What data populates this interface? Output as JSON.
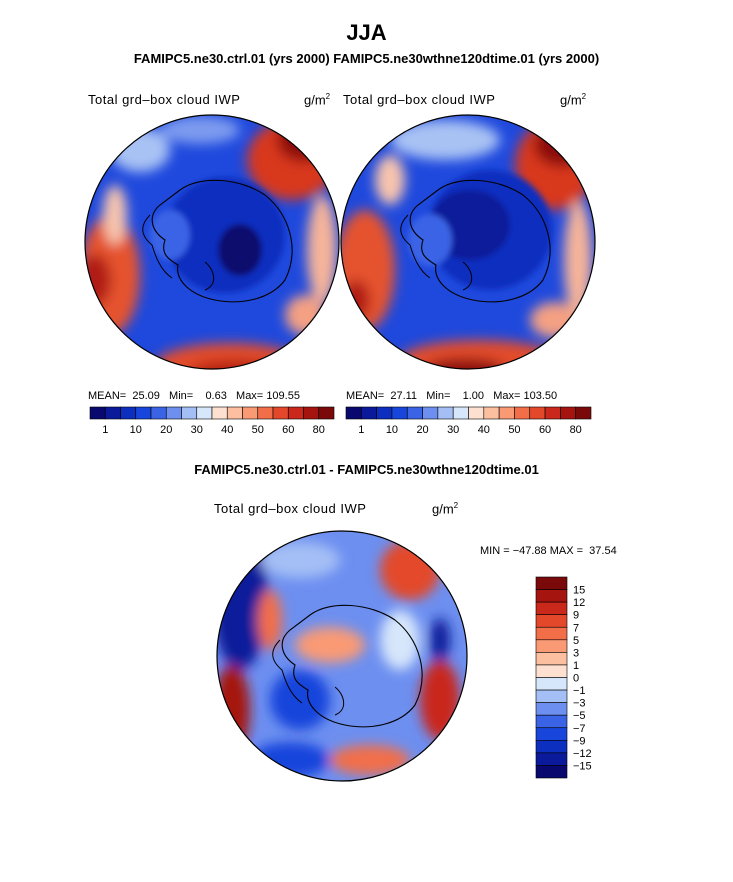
{
  "main_title": "JJA",
  "top_title": "FAMIPC5.ne30.ctrl.01 (yrs 2000)   FAMIPC5.ne30wthne120dtime.01 (yrs 2000)",
  "left_panel": {
    "var_label": "Total grd–box cloud IWP",
    "units": "g/m",
    "units_exp": "2",
    "mean_label": "MEAN=",
    "mean_value": "25.09",
    "min_label": "Min=",
    "min_value": "0.63",
    "max_label": "Max=",
    "max_value": "109.55"
  },
  "right_panel": {
    "var_label": "Total grd–box cloud IWP",
    "units": "g/m",
    "units_exp": "2",
    "mean_label": "MEAN=",
    "mean_value": "27.11",
    "min_label": "Min=",
    "min_value": "1.00",
    "max_label": "Max=",
    "max_value": "103.50"
  },
  "top_colorbar": {
    "ticks": [
      "1",
      "10",
      "20",
      "30",
      "40",
      "50",
      "60",
      "80"
    ],
    "colors": [
      "#08086e",
      "#0a1a9a",
      "#0c2fbf",
      "#1845dc",
      "#3a63e6",
      "#6d8ff0",
      "#a4bff5",
      "#d6e6fb",
      "#fde0d0",
      "#fcbfa0",
      "#f99a75",
      "#f26e48",
      "#e3482a",
      "#c9281a",
      "#a5140f",
      "#7a0a0a"
    ]
  },
  "diff_title": "FAMIPC5.ne30.ctrl.01 - FAMIPC5.ne30wthne120dtime.01",
  "bottom_panel": {
    "var_label": "Total grd–box cloud IWP",
    "units": "g/m",
    "units_exp": "2",
    "min_label": "MIN = ",
    "min_value": "−47.88",
    "max_label": "MAX = ",
    "max_value": "37.54"
  },
  "diff_colorbar": {
    "labels": [
      "15",
      "12",
      "9",
      "7",
      "5",
      "3",
      "1",
      "0",
      "−1",
      "−3",
      "−5",
      "−7",
      "−9",
      "−12",
      "−15"
    ],
    "colors": [
      "#7a0a0a",
      "#a5140f",
      "#c9281a",
      "#e3482a",
      "#f26e48",
      "#f99a75",
      "#fcbfa0",
      "#fde0d0",
      "#d6e6fb",
      "#a4bff5",
      "#6d8ff0",
      "#3a63e6",
      "#1845dc",
      "#0c2fbf",
      "#0a1a9a",
      "#08086e"
    ]
  }
}
